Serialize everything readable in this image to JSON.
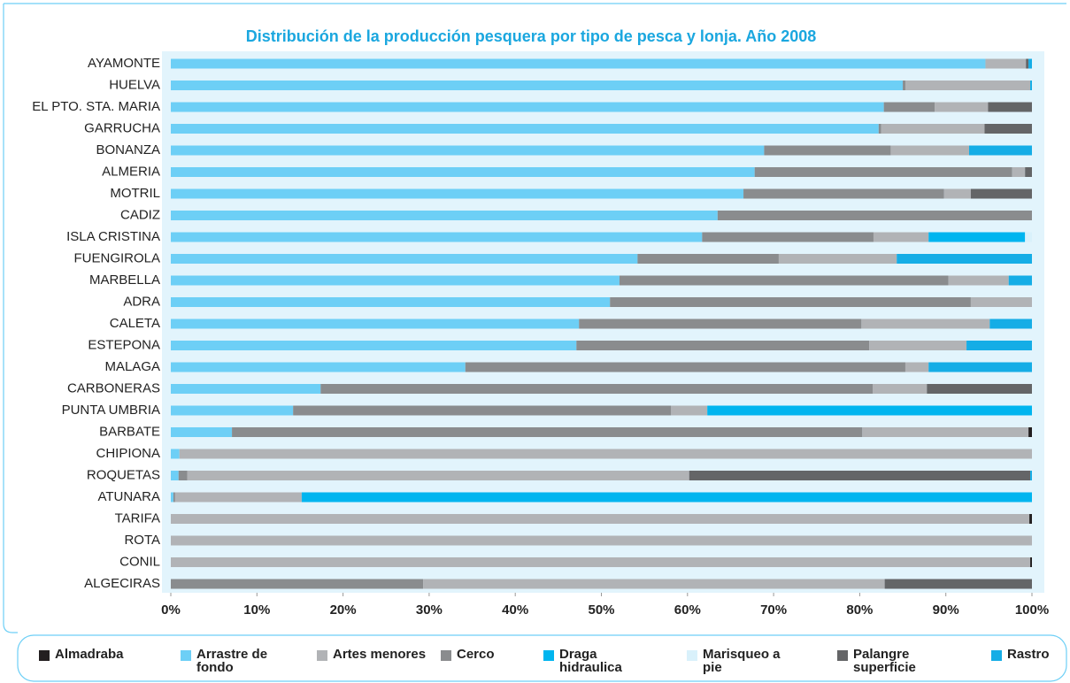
{
  "chart_data": {
    "type": "bar",
    "orientation": "horizontal",
    "stacked": true,
    "title": "Distribución de la producción pesquera por tipo de pesca y lonja. Año 2008",
    "categories": [
      "AYAMONTE",
      "HUELVA",
      "EL PTO. STA. MARIA",
      "GARRUCHA",
      "BONANZA",
      "ALMERIA",
      "MOTRIL",
      "CADIZ",
      "ISLA CRISTINA",
      "FUENGIROLA",
      "MARBELLA",
      "ADRA",
      "CALETA",
      "ESTEPONA",
      "MALAGA",
      "CARBONERAS",
      "PUNTA UMBRIA",
      "BARBATE",
      "CHIPIONA",
      "ROQUETAS",
      "ATUNARA",
      "TARIFA",
      "ROTA",
      "CONIL",
      "ALGECIRAS"
    ],
    "series": [
      {
        "name": "Almadraba",
        "color": "#231f20",
        "values": [
          0,
          0,
          0,
          0,
          0,
          0,
          0,
          0,
          0,
          0,
          0,
          0,
          0,
          0,
          0,
          0,
          0,
          0.4,
          0,
          0,
          0,
          0.3,
          0,
          0.2,
          0
        ]
      },
      {
        "name": "Arrastre de fondo",
        "color": "#6dcff6",
        "values": [
          94.6,
          85.0,
          82.8,
          82.2,
          68.9,
          67.8,
          66.5,
          63.5,
          61.7,
          54.2,
          52.1,
          51.0,
          47.4,
          47.1,
          34.2,
          17.4,
          14.2,
          7.1,
          1.0,
          0.9,
          0.3,
          0,
          0,
          0,
          0
        ]
      },
      {
        "name": "Artes menores",
        "color": "#b1b3b6",
        "values": [
          4.7,
          14.5,
          6.2,
          12.0,
          9.1,
          1.5,
          3.1,
          0,
          6.4,
          13.7,
          7.0,
          7.1,
          14.9,
          11.3,
          2.7,
          6.3,
          4.2,
          19.3,
          99.0,
          58.3,
          14.7,
          99.7,
          100,
          99.8,
          53.6
        ]
      },
      {
        "name": "Cerco",
        "color": "#8a8c8e",
        "values": [
          0,
          0.3,
          5.9,
          0.3,
          14.7,
          29.9,
          23.3,
          36.5,
          19.9,
          16.4,
          38.2,
          41.9,
          32.8,
          34.0,
          51.1,
          64.1,
          43.9,
          73.2,
          0,
          1.0,
          0.2,
          0,
          0,
          0,
          29.3
        ]
      },
      {
        "name": "Draga hidraulica",
        "color": "#00b5ef",
        "values": [
          0,
          0,
          0,
          0,
          0,
          0,
          0,
          0,
          11.2,
          0,
          0,
          0,
          0,
          0,
          0,
          0,
          37.7,
          0,
          0,
          0,
          84.8,
          0,
          0,
          0,
          0
        ]
      },
      {
        "name": "Marisqueo a pie",
        "color": "#d9f1fb",
        "values": [
          0,
          0,
          0,
          0,
          0,
          0,
          0,
          0,
          0.8,
          0,
          0,
          0,
          0,
          0,
          0,
          0,
          0,
          0,
          0,
          0,
          0,
          0,
          0,
          0,
          0
        ]
      },
      {
        "name": "Palangre superficie",
        "color": "#646567",
        "values": [
          0.3,
          0,
          5.1,
          5.5,
          0,
          0.8,
          7.1,
          0,
          0,
          0,
          0,
          0,
          0,
          0,
          0,
          12.2,
          0,
          0,
          0,
          39.6,
          0,
          0,
          0,
          0,
          17.1
        ]
      },
      {
        "name": "Rastro",
        "color": "#15ade6",
        "values": [
          0.4,
          0.2,
          0,
          0,
          7.3,
          0,
          0,
          0,
          0,
          15.7,
          2.7,
          0,
          4.9,
          7.6,
          12.0,
          0,
          0,
          0,
          0,
          0.2,
          0,
          0,
          0,
          0,
          0
        ]
      }
    ],
    "xlim": [
      0,
      100
    ],
    "xticks": [
      {
        "value": 0,
        "label": "0%"
      },
      {
        "value": 10,
        "label": "10%"
      },
      {
        "value": 20,
        "label": "20%"
      },
      {
        "value": 30,
        "label": "30%"
      },
      {
        "value": 40,
        "label": "40%"
      },
      {
        "value": 50,
        "label": "50%"
      },
      {
        "value": 60,
        "label": "60%"
      },
      {
        "value": 70,
        "label": "70%"
      },
      {
        "value": 80,
        "label": "80%"
      },
      {
        "value": 90,
        "label": "90%"
      },
      {
        "value": 100,
        "label": "100%"
      }
    ],
    "legend": "bottom"
  }
}
